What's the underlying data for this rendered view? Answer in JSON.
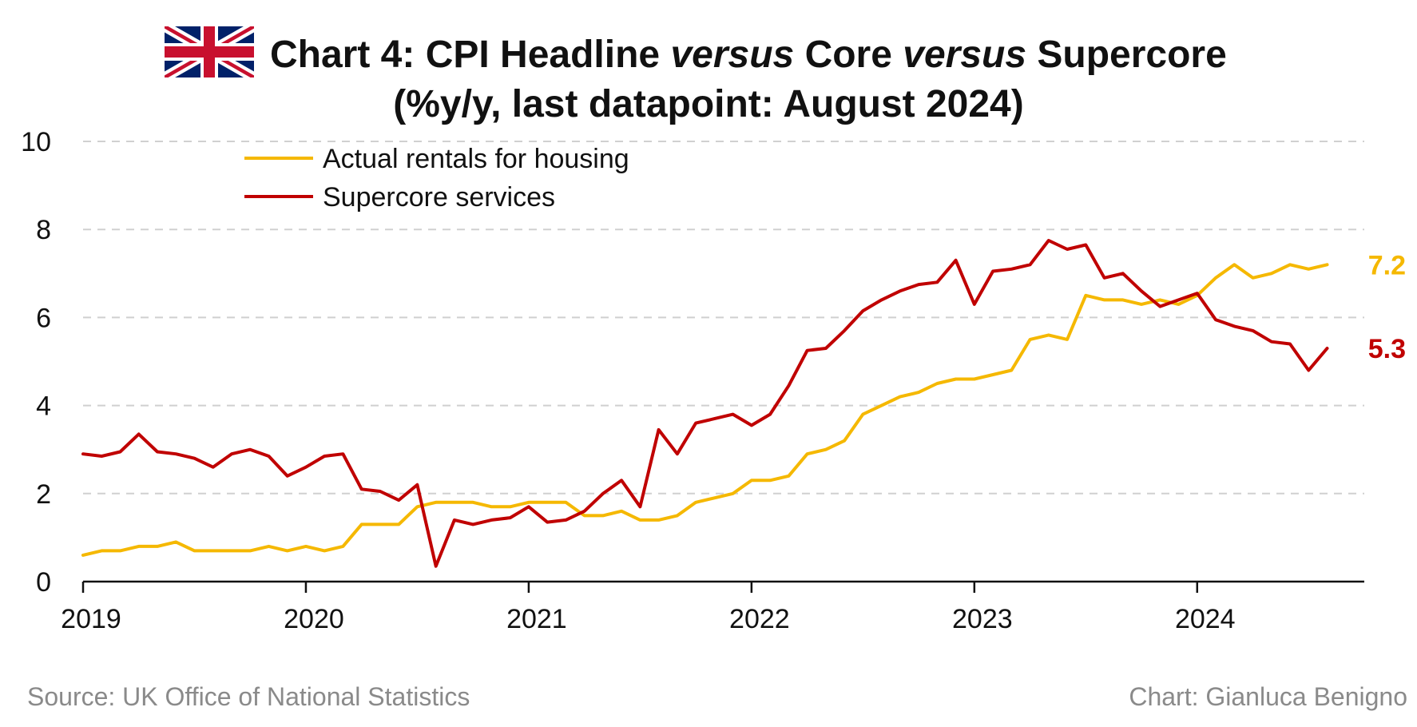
{
  "header": {
    "title_part1": "Chart 4: CPI Headline ",
    "title_italic1": "versus",
    "title_part2": " Core ",
    "title_italic2": "versus",
    "title_part3": " Supercore",
    "subtitle": "(%y/y, last datapoint: August 2024)"
  },
  "footer": {
    "source": "Source: UK Office of National Statistics",
    "credit": "Chart: Gianluca Benigno"
  },
  "chart_data": {
    "type": "line",
    "title": "Chart 4: CPI Headline versus Core versus Supercore",
    "subtitle": "(%y/y, last datapoint: August 2024)",
    "x_start": "2019-01",
    "x_end": "2024-08",
    "xlim": [
      "2019-01",
      "2024-10"
    ],
    "ylim": [
      0,
      10
    ],
    "yticks": [
      0,
      2,
      4,
      6,
      8,
      10
    ],
    "ytick_labels": [
      "0",
      "2",
      "4",
      "6",
      "8",
      "10"
    ],
    "xticks": [
      "2019-01",
      "2020-01",
      "2021-01",
      "2022-01",
      "2023-01",
      "2024-01"
    ],
    "xtick_labels": [
      "2019",
      "2020",
      "2021",
      "2022",
      "2023",
      "2024"
    ],
    "grid": true,
    "legend_position": "top-left",
    "series": [
      {
        "name": "Actual rentals for housing",
        "color": "#f5b800",
        "end_label": "7.2",
        "values": [
          0.6,
          0.7,
          0.7,
          0.8,
          0.8,
          0.9,
          0.7,
          0.7,
          0.7,
          0.7,
          0.8,
          0.7,
          0.8,
          0.7,
          0.8,
          1.3,
          1.3,
          1.3,
          1.7,
          1.8,
          1.8,
          1.8,
          1.7,
          1.7,
          1.8,
          1.8,
          1.8,
          1.5,
          1.5,
          1.6,
          1.4,
          1.4,
          1.5,
          1.8,
          1.9,
          2.0,
          2.3,
          2.3,
          2.4,
          2.9,
          3.0,
          3.2,
          3.8,
          4.0,
          4.2,
          4.3,
          4.5,
          4.6,
          4.6,
          4.7,
          4.8,
          5.5,
          5.6,
          5.5,
          6.5,
          6.4,
          6.4,
          6.3,
          6.4,
          6.3,
          6.5,
          6.9,
          7.2,
          6.9,
          7.0,
          7.2,
          7.1,
          7.2
        ]
      },
      {
        "name": "Supercore services",
        "color": "#c00000",
        "end_label": "5.3",
        "values": [
          2.9,
          2.85,
          2.95,
          3.35,
          2.95,
          2.9,
          2.8,
          2.6,
          2.9,
          3.0,
          2.85,
          2.4,
          2.6,
          2.85,
          2.9,
          2.1,
          2.05,
          1.85,
          2.2,
          0.35,
          1.4,
          1.3,
          1.4,
          1.45,
          1.7,
          1.35,
          1.4,
          1.6,
          2.0,
          2.3,
          1.7,
          3.45,
          2.9,
          3.6,
          3.7,
          3.8,
          3.55,
          3.8,
          4.45,
          5.25,
          5.3,
          5.7,
          6.15,
          6.4,
          6.6,
          6.75,
          6.8,
          7.3,
          6.3,
          7.05,
          7.1,
          7.2,
          7.75,
          7.55,
          7.65,
          6.9,
          7.0,
          6.6,
          6.25,
          6.4,
          6.55,
          5.95,
          5.8,
          5.7,
          5.45,
          5.4,
          4.8,
          5.3
        ]
      }
    ],
    "source": "Source: UK Office of National Statistics",
    "credit": "Chart: Gianluca Benigno"
  }
}
